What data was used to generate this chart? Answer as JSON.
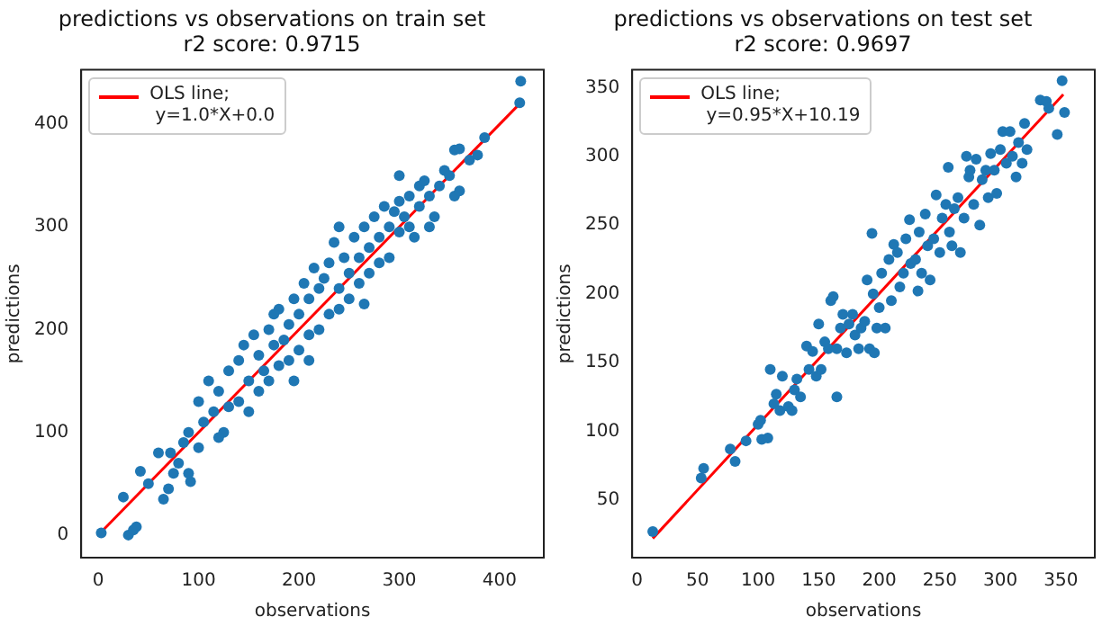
{
  "chart_data": [
    {
      "type": "scatter",
      "title": "predictions vs observations on train set\nr2 score: 0.9715",
      "xlabel": "observations",
      "ylabel": "predictions",
      "xlim": [
        -17,
        444
      ],
      "ylim": [
        -22,
        453
      ],
      "xticks": [
        0,
        100,
        200,
        300,
        400
      ],
      "yticks": [
        0,
        100,
        200,
        300,
        400
      ],
      "grid": false,
      "legend": "top left",
      "series": [
        {
          "color": "#1f77b4",
          "marker": "circle",
          "x": [
            3,
            30,
            35,
            38,
            25,
            42,
            50,
            65,
            70,
            72,
            80,
            60,
            90,
            92,
            85,
            100,
            105,
            110,
            100,
            115,
            120,
            125,
            130,
            130,
            140,
            140,
            145,
            150,
            150,
            155,
            160,
            160,
            165,
            170,
            170,
            175,
            180,
            180,
            185,
            190,
            190,
            195,
            200,
            200,
            205,
            210,
            210,
            215,
            220,
            220,
            225,
            230,
            230,
            235,
            240,
            240,
            245,
            250,
            250,
            255,
            260,
            260,
            265,
            270,
            270,
            275,
            280,
            280,
            285,
            290,
            290,
            295,
            300,
            300,
            305,
            310,
            310,
            315,
            320,
            320,
            325,
            330,
            335,
            340,
            345,
            350,
            355,
            355,
            360,
            360,
            370,
            378,
            385,
            420,
            421,
            175,
            210,
            195,
            240,
            265,
            300,
            330,
            120,
            90,
            75
          ],
          "values": [
            2,
            0,
            5,
            8,
            37,
            62,
            50,
            35,
            45,
            80,
            70,
            80,
            100,
            52,
            90,
            130,
            110,
            150,
            85,
            120,
            140,
            100,
            160,
            125,
            170,
            130,
            185,
            150,
            120,
            195,
            175,
            140,
            160,
            200,
            150,
            185,
            220,
            165,
            190,
            205,
            170,
            230,
            215,
            180,
            245,
            195,
            230,
            260,
            200,
            240,
            250,
            215,
            265,
            285,
            240,
            220,
            270,
            255,
            230,
            290,
            270,
            245,
            300,
            280,
            255,
            310,
            290,
            265,
            320,
            300,
            270,
            315,
            295,
            325,
            310,
            330,
            300,
            290,
            340,
            320,
            345,
            330,
            310,
            340,
            355,
            350,
            375,
            330,
            376,
            335,
            365,
            370,
            387,
            421,
            442,
            215,
            170,
            150,
            300,
            225,
            350,
            300,
            95,
            60,
            60
          ]
        },
        {
          "type": "line",
          "name": "OLS line;\n y=1.0*X+0.0",
          "color": "#ff0000",
          "marker": "none",
          "x": [
            3,
            421
          ],
          "values": [
            3,
            421
          ]
        }
      ]
    },
    {
      "type": "scatter",
      "title": "predictions vs observations on test set\nr2 score: 0.9697",
      "xlabel": "observations",
      "ylabel": "predictions",
      "xlim": [
        -4,
        378
      ],
      "ylim": [
        8,
        363
      ],
      "xticks": [
        0,
        50,
        100,
        150,
        200,
        250,
        300,
        350
      ],
      "yticks": [
        50,
        100,
        150,
        200,
        250,
        300,
        350
      ],
      "grid": false,
      "legend": "top left",
      "series": [
        {
          "color": "#1f77b4",
          "marker": "circle",
          "x": [
            13,
            53,
            55,
            77,
            81,
            90,
            100,
            102,
            103,
            108,
            110,
            113,
            115,
            118,
            120,
            125,
            128,
            130,
            132,
            135,
            140,
            142,
            145,
            148,
            150,
            152,
            155,
            158,
            160,
            162,
            165,
            165,
            168,
            170,
            173,
            175,
            178,
            180,
            183,
            185,
            188,
            190,
            192,
            194,
            195,
            196,
            198,
            200,
            202,
            205,
            208,
            210,
            212,
            215,
            217,
            220,
            222,
            225,
            226,
            230,
            232,
            233,
            235,
            238,
            240,
            242,
            245,
            247,
            250,
            252,
            255,
            257,
            258,
            260,
            262,
            265,
            267,
            270,
            272,
            274,
            275,
            278,
            280,
            283,
            285,
            288,
            290,
            292,
            295,
            297,
            300,
            302,
            305,
            308,
            310,
            313,
            315,
            318,
            320,
            322,
            333,
            338,
            340,
            347,
            351,
            353
          ],
          "values": [
            27,
            66,
            73,
            87,
            78,
            93,
            105,
            108,
            94,
            95,
            145,
            120,
            127,
            115,
            140,
            118,
            115,
            130,
            138,
            125,
            162,
            145,
            158,
            140,
            178,
            145,
            165,
            160,
            195,
            198,
            125,
            160,
            175,
            185,
            157,
            178,
            185,
            170,
            160,
            175,
            180,
            210,
            160,
            244,
            200,
            157,
            175,
            190,
            215,
            175,
            225,
            195,
            236,
            230,
            205,
            215,
            240,
            254,
            222,
            225,
            202,
            245,
            215,
            258,
            235,
            210,
            240,
            272,
            230,
            255,
            265,
            292,
            245,
            235,
            262,
            270,
            230,
            255,
            300,
            285,
            290,
            265,
            298,
            250,
            283,
            290,
            270,
            302,
            290,
            273,
            305,
            318,
            295,
            318,
            300,
            285,
            310,
            295,
            324,
            305,
            341,
            340,
            335,
            316,
            355,
            332
          ]
        },
        {
          "type": "line",
          "name": "OLS line;\n y=0.95*X+10.19",
          "color": "#ff0000",
          "marker": "none",
          "x": [
            13,
            352
          ],
          "values": [
            22,
            345
          ]
        }
      ]
    }
  ]
}
